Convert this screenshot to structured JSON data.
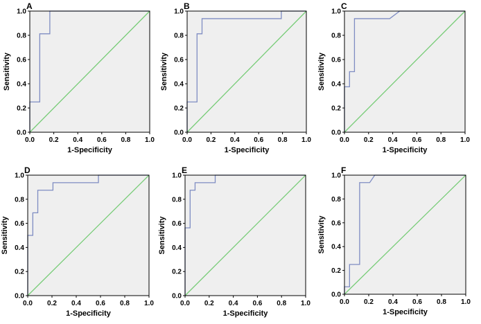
{
  "chart_data": [
    {
      "type": "line",
      "panel": "A",
      "xlabel": "1-Specificity",
      "ylabel": "Sensitivity",
      "xlim": [
        0,
        1
      ],
      "ylim": [
        0,
        1
      ],
      "xticks": [
        "0.0",
        "0.2",
        "0.4",
        "0.6",
        "0.8",
        "1.0"
      ],
      "yticks": [
        "0.0",
        "0.2",
        "0.4",
        "0.6",
        "0.8",
        "1.0"
      ],
      "series": [
        {
          "name": "ROC curve",
          "color": "#7e8cc2",
          "x": [
            0,
            0,
            0.083,
            0.083,
            0.167,
            0.167,
            1
          ],
          "y": [
            0,
            0.25,
            0.25,
            0.8125,
            0.8125,
            1,
            1
          ]
        },
        {
          "name": "Reference line",
          "color": "#77cc77",
          "x": [
            0,
            1
          ],
          "y": [
            0,
            1
          ]
        }
      ]
    },
    {
      "type": "line",
      "panel": "B",
      "xlabel": "1-Specificity",
      "ylabel": "Sensitivity",
      "xlim": [
        0,
        1
      ],
      "ylim": [
        0,
        1
      ],
      "xticks": [
        "0.0",
        "0.2",
        "0.4",
        "0.6",
        "0.8",
        "1.0"
      ],
      "yticks": [
        "0.0",
        "0.2",
        "0.4",
        "0.6",
        "0.8",
        "1.0"
      ],
      "series": [
        {
          "name": "ROC curve",
          "color": "#7e8cc2",
          "x": [
            0,
            0,
            0.083,
            0.083,
            0.125,
            0.125,
            0.79,
            0.79,
            1
          ],
          "y": [
            0,
            0.25,
            0.25,
            0.8125,
            0.8125,
            0.9375,
            0.9375,
            1,
            1
          ]
        },
        {
          "name": "Reference line",
          "color": "#77cc77",
          "x": [
            0,
            1
          ],
          "y": [
            0,
            1
          ]
        }
      ]
    },
    {
      "type": "line",
      "panel": "C",
      "xlabel": "1-Specificity",
      "ylabel": "Sensitivity",
      "xlim": [
        0,
        1
      ],
      "ylim": [
        0,
        1
      ],
      "xticks": [
        "0.0",
        "0.2",
        "0.4",
        "0.6",
        "0.8",
        "1.0"
      ],
      "yticks": [
        "0.0",
        "0.2",
        "0.4",
        "0.6",
        "0.8",
        "1.0"
      ],
      "series": [
        {
          "name": "ROC curve",
          "color": "#7e8cc2",
          "x": [
            0,
            0,
            0.042,
            0.042,
            0.083,
            0.083,
            0.375,
            0.458,
            1
          ],
          "y": [
            0,
            0.375,
            0.375,
            0.5,
            0.5,
            0.9375,
            0.9375,
            1,
            1
          ]
        },
        {
          "name": "Reference line",
          "color": "#77cc77",
          "x": [
            0,
            1
          ],
          "y": [
            0,
            1
          ]
        }
      ]
    },
    {
      "type": "line",
      "panel": "D",
      "xlabel": "1-Specificity",
      "ylabel": "Sensitivity",
      "xlim": [
        0,
        1
      ],
      "ylim": [
        0,
        1
      ],
      "xticks": [
        "0.0",
        "0.2",
        "0.4",
        "0.6",
        "0.8",
        "1.0"
      ],
      "yticks": [
        "0.0",
        "0.2",
        "0.4",
        "0.6",
        "0.8",
        "1.0"
      ],
      "series": [
        {
          "name": "ROC curve",
          "color": "#7e8cc2",
          "x": [
            0,
            0,
            0.042,
            0.042,
            0.083,
            0.083,
            0.208,
            0.208,
            0.583,
            0.583,
            1
          ],
          "y": [
            0,
            0.5,
            0.5,
            0.6875,
            0.6875,
            0.875,
            0.875,
            0.9375,
            0.9375,
            1,
            1
          ]
        },
        {
          "name": "Reference line",
          "color": "#77cc77",
          "x": [
            0,
            1
          ],
          "y": [
            0,
            1
          ]
        }
      ]
    },
    {
      "type": "line",
      "panel": "E",
      "xlabel": "1-Specificity",
      "ylabel": "Sensitivity",
      "xlim": [
        0,
        1
      ],
      "ylim": [
        0,
        1
      ],
      "xticks": [
        "0.0",
        "0.2",
        "0.4",
        "0.6",
        "0.8",
        "1.0"
      ],
      "yticks": [
        "0.0",
        "0.2",
        "0.4",
        "0.6",
        "0.8",
        "1.0"
      ],
      "series": [
        {
          "name": "ROC curve",
          "color": "#7e8cc2",
          "x": [
            0,
            0,
            0.042,
            0.042,
            0.083,
            0.083,
            0.25,
            0.25,
            1
          ],
          "y": [
            0,
            0.5625,
            0.5625,
            0.875,
            0.875,
            0.9375,
            0.9375,
            1,
            1
          ]
        },
        {
          "name": "Reference line",
          "color": "#77cc77",
          "x": [
            0,
            1
          ],
          "y": [
            0,
            1
          ]
        }
      ]
    },
    {
      "type": "line",
      "panel": "F",
      "xlabel": "1-Specificity",
      "ylabel": "Sensitivity",
      "xlim": [
        0,
        1
      ],
      "ylim": [
        0,
        1
      ],
      "xticks": [
        "0.0",
        "0.2",
        "0.4",
        "0.6",
        "0.8",
        "1.0"
      ],
      "yticks": [
        "0.0",
        "0.2",
        "0.4",
        "0.6",
        "0.8",
        "1.0"
      ],
      "series": [
        {
          "name": "ROC curve",
          "color": "#7e8cc2",
          "x": [
            0,
            0,
            0.042,
            0.042,
            0.125,
            0.125,
            0.208,
            0.25,
            1
          ],
          "y": [
            0,
            0.0625,
            0.0625,
            0.25,
            0.25,
            0.9375,
            0.9375,
            1,
            1
          ]
        },
        {
          "name": "Reference line",
          "color": "#77cc77",
          "x": [
            0,
            1
          ],
          "y": [
            0,
            1
          ]
        }
      ]
    }
  ]
}
